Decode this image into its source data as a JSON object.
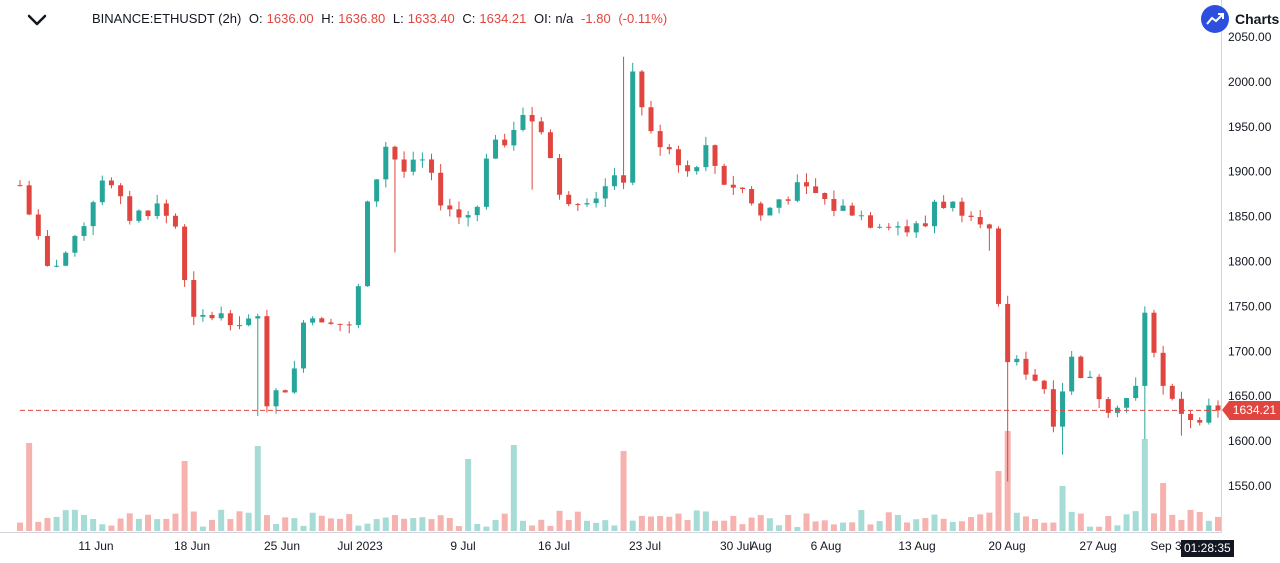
{
  "legend": {
    "symbol": "BINANCE:ETHUSDT (2h)",
    "o_label": "O:",
    "o_value": "1636.00",
    "h_label": "H:",
    "h_value": "1636.80",
    "l_label": "L:",
    "l_value": "1633.40",
    "c_label": "C:",
    "c_value": "1634.21",
    "oi_label": "OI:",
    "oi_value": "n/a",
    "change": "-1.80",
    "change_pct": "(-0.11%)"
  },
  "branding": {
    "logo_text": "Charts"
  },
  "chart_data": {
    "type": "candlestick",
    "symbol": "BINANCE:ETHUSDT",
    "interval": "2h",
    "y_ticks": [
      "2050.00",
      "2000.00",
      "1950.00",
      "1900.00",
      "1850.00",
      "1800.00",
      "1750.00",
      "1700.00",
      "1650.00",
      "1600.00",
      "1550.00"
    ],
    "ylim": [
      1508,
      2058
    ],
    "x_ticks": [
      "11 Jun",
      "18 Jun",
      "25 Jun",
      "Jul 2023",
      "9 Jul",
      "16 Jul",
      "23 Jul",
      "30 Jul",
      "Aug",
      "6 Aug",
      "13 Aug",
      "20 Aug",
      "27 Aug",
      "Sep 3"
    ],
    "last_price": 1634.21,
    "last_price_label": "1634.21",
    "countdown": "01:28:35",
    "colors": {
      "up": "#26a69a",
      "down": "#e0463f",
      "vol_up": "#a6dcd5",
      "vol_down": "#f5b2ae"
    },
    "price_path": [
      [
        0,
        1885
      ],
      [
        3,
        1790
      ],
      [
        6,
        1820
      ],
      [
        9,
        1895
      ],
      [
        12,
        1850
      ],
      [
        15,
        1862
      ],
      [
        17,
        1840
      ],
      [
        19,
        1732
      ],
      [
        21,
        1740
      ],
      [
        23,
        1738
      ],
      [
        25,
        1735
      ],
      [
        26,
        1732
      ],
      [
        27,
        1645
      ],
      [
        28,
        1650
      ],
      [
        30,
        1675
      ],
      [
        31,
        1740
      ],
      [
        34,
        1738
      ],
      [
        36,
        1725
      ],
      [
        37,
        1770
      ],
      [
        38,
        1860
      ],
      [
        40,
        1930
      ],
      [
        42,
        1900
      ],
      [
        44,
        1910
      ],
      [
        46,
        1870
      ],
      [
        48,
        1850
      ],
      [
        50,
        1858
      ],
      [
        51,
        1920
      ],
      [
        53,
        1935
      ],
      [
        55,
        1965
      ],
      [
        57,
        1950
      ],
      [
        58,
        1915
      ],
      [
        59,
        1870
      ],
      [
        61,
        1872
      ],
      [
        63,
        1875
      ],
      [
        65,
        1888
      ],
      [
        66,
        1893
      ],
      [
        67,
        2010
      ],
      [
        69,
        1940
      ],
      [
        71,
        1928
      ],
      [
        73,
        1900
      ],
      [
        75,
        1925
      ],
      [
        77,
        1890
      ],
      [
        79,
        1880
      ],
      [
        81,
        1850
      ],
      [
        83,
        1870
      ],
      [
        85,
        1880
      ],
      [
        87,
        1875
      ],
      [
        89,
        1860
      ],
      [
        91,
        1858
      ],
      [
        93,
        1845
      ],
      [
        95,
        1845
      ],
      [
        97,
        1835
      ],
      [
        99,
        1840
      ],
      [
        100,
        1868
      ],
      [
        102,
        1862
      ],
      [
        104,
        1858
      ],
      [
        105,
        1850
      ],
      [
        106,
        1832
      ],
      [
        107,
        1745
      ],
      [
        108,
        1690
      ],
      [
        110,
        1680
      ],
      [
        112,
        1660
      ],
      [
        113,
        1625
      ],
      [
        114,
        1660
      ],
      [
        115,
        1690
      ],
      [
        117,
        1665
      ],
      [
        119,
        1640
      ],
      [
        121,
        1648
      ],
      [
        122,
        1658
      ],
      [
        123,
        1740
      ],
      [
        124,
        1705
      ],
      [
        125,
        1660
      ],
      [
        126,
        1640
      ],
      [
        128,
        1628
      ],
      [
        130,
        1631
      ],
      [
        131,
        1634
      ]
    ],
    "shocks": [
      [
        26,
        1628
      ],
      [
        41,
        1810
      ],
      [
        56,
        1880
      ],
      [
        66,
        2028
      ],
      [
        106,
        1812
      ],
      [
        108,
        1555
      ],
      [
        114,
        1585
      ],
      [
        123,
        1602
      ],
      [
        124,
        1746
      ],
      [
        127,
        1606
      ]
    ],
    "volume_spikes": [
      [
        1,
        88
      ],
      [
        18,
        70
      ],
      [
        26,
        85
      ],
      [
        49,
        72
      ],
      [
        54,
        86
      ],
      [
        66,
        80
      ],
      [
        107,
        60
      ],
      [
        108,
        100
      ],
      [
        114,
        45
      ],
      [
        123,
        92
      ],
      [
        125,
        48
      ]
    ],
    "num_bars": 132
  }
}
